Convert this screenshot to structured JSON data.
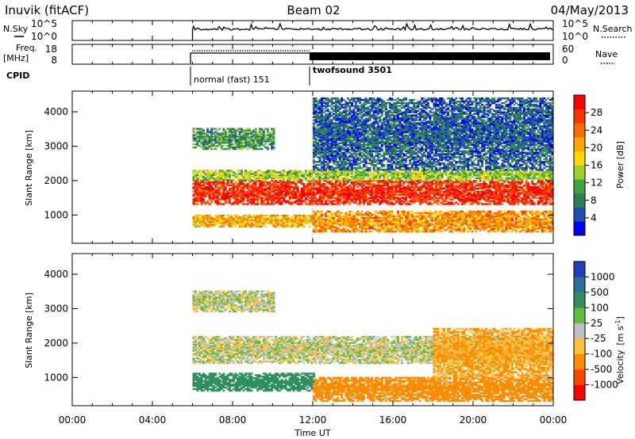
{
  "header": {
    "station": "Inuvik (fitACF)",
    "beam": "Beam 02",
    "date": "04/May/2013"
  },
  "noise_panel": {
    "left_label": "N.Sky",
    "right_label": "N.Search",
    "left_ticks": [
      "10^5",
      "10^0"
    ],
    "right_ticks": [
      "10^5",
      "10^0"
    ]
  },
  "freq_panel": {
    "left_label_line1": "Freq.",
    "left_label_line2": "[MHz]",
    "right_label": "Nave",
    "left_ticks": [
      "18",
      "8"
    ],
    "right_ticks": [
      "60",
      "0"
    ]
  },
  "cpid_panel": {
    "label": "CPID",
    "modes": [
      "normal (fast) 151",
      "twofsound 3501"
    ]
  },
  "x_axis": {
    "label": "Time UT",
    "ticks": [
      "00:00",
      "04:00",
      "08:00",
      "12:00",
      "16:00",
      "20:00",
      "00:00"
    ]
  },
  "power_colorbar": {
    "label": "Power [dB]",
    "ticks": [
      "4",
      "8",
      "12",
      "16",
      "20",
      "24",
      "28"
    ],
    "colors": [
      "#0000ff",
      "#1f4fb4",
      "#2f7f4f",
      "#3fa63f",
      "#9fcf2f",
      "#ffd700",
      "#ffa500",
      "#ff6a00",
      "#ff3300",
      "#ff0000"
    ]
  },
  "velocity_colorbar": {
    "label": "Velocity",
    "unit": "[m s",
    "unit_exp": "-1",
    "unit_close": "]",
    "ticks": [
      "1000",
      "500",
      "100",
      "25",
      "-25",
      "-100",
      "-500",
      "-1000"
    ],
    "colors": [
      "#1f3fbf",
      "#2f6f9f",
      "#2f8f5f",
      "#5fbf3f",
      "#bfbfbf",
      "#ffbf3f",
      "#ff8c00",
      "#ff4500",
      "#ff0000"
    ]
  },
  "chart_data": [
    {
      "type": "heatmap",
      "title": "",
      "xlabel": "",
      "ylabel": "Slant Range [km]",
      "x_range_hours": [
        0,
        24
      ],
      "ylim": [
        180,
        4600
      ],
      "yticks": [
        1000,
        2000,
        3000,
        4000
      ],
      "colorbar": "Power [dB]",
      "data_start_hours": 6,
      "cpid_switch_hours": 12,
      "bands": [
        {
          "t0": 6,
          "t1": 24,
          "r0": 1300,
          "r1": 2000,
          "value_db": 28
        },
        {
          "t0": 6,
          "t1": 24,
          "r0": 2000,
          "r1": 2300,
          "value_db": 14
        },
        {
          "t0": 6,
          "t1": 12,
          "r0": 650,
          "r1": 1000,
          "value_db": 20
        },
        {
          "t0": 12,
          "t1": 24,
          "r0": 500,
          "r1": 1100,
          "value_db": 22
        },
        {
          "t0": 6,
          "t1": 10,
          "r0": 2900,
          "r1": 3500,
          "value_db": 10
        },
        {
          "t0": 12,
          "t1": 24,
          "r0": 2300,
          "r1": 4400,
          "value_db": 6
        }
      ]
    },
    {
      "type": "heatmap",
      "title": "",
      "xlabel": "Time UT",
      "ylabel": "Slant Range [km]",
      "x_range_hours": [
        0,
        24
      ],
      "ylim": [
        180,
        4600
      ],
      "yticks": [
        1000,
        2000,
        3000,
        4000
      ],
      "colorbar": "Velocity [m s-1]",
      "data_start_hours": 6,
      "bands": [
        {
          "t0": 6,
          "t1": 24,
          "r0": 1400,
          "r1": 2200,
          "value_ms": 0
        },
        {
          "t0": 6,
          "t1": 12,
          "r0": 600,
          "r1": 1100,
          "value_ms": 200
        },
        {
          "t0": 12,
          "t1": 24,
          "r0": 300,
          "r1": 1000,
          "value_ms": -300
        },
        {
          "t0": 18,
          "t1": 24,
          "r0": 1000,
          "r1": 2400,
          "value_ms": -100
        },
        {
          "t0": 6,
          "t1": 10,
          "r0": 2900,
          "r1": 3500,
          "value_ms": 0
        }
      ]
    }
  ]
}
